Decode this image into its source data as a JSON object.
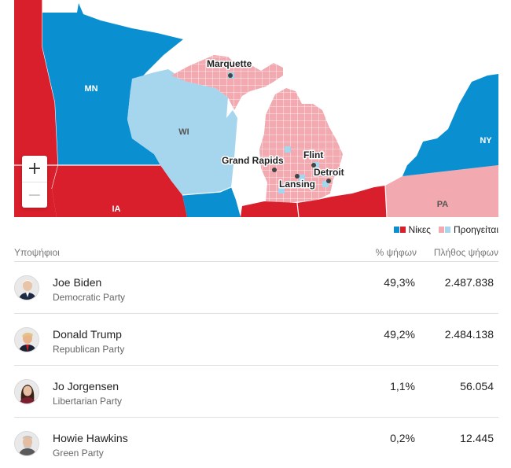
{
  "map": {
    "state_labels": {
      "mn": "MN",
      "wi": "WI",
      "ia": "IA",
      "ny": "NY",
      "pa": "PA"
    },
    "cities": {
      "marquette": "Marquette",
      "grand_rapids": "Grand Rapids",
      "flint": "Flint",
      "detroit": "Detroit",
      "lansing": "Lansing"
    },
    "zoom_in": "+",
    "zoom_out": "−"
  },
  "legend": {
    "wins": "Νίκες",
    "leading": "Προηγείται"
  },
  "colors": {
    "dem_win": "#0a8fd1",
    "dem_lead": "#a6d6ee",
    "rep_win": "#d91f2b",
    "rep_lead": "#f2a9b0",
    "water": "#ffffff"
  },
  "table": {
    "headers": {
      "candidates": "Υποψήφιοι",
      "percent": "% ψήφων",
      "votes": "Πλήθος ψήφων"
    },
    "rows": [
      {
        "name": "Joe Biden",
        "party": "Democratic Party",
        "percent": "49,3%",
        "votes": "2.487.838",
        "avatar": "portrait-biden-icon"
      },
      {
        "name": "Donald Trump",
        "party": "Republican Party",
        "percent": "49,2%",
        "votes": "2.484.138",
        "avatar": "portrait-trump-icon"
      },
      {
        "name": "Jo Jorgensen",
        "party": "Libertarian Party",
        "percent": "1,1%",
        "votes": "56.054",
        "avatar": "portrait-jorgensen-icon"
      },
      {
        "name": "Howie Hawkins",
        "party": "Green Party",
        "percent": "0,2%",
        "votes": "12.445",
        "avatar": "portrait-hawkins-icon"
      }
    ]
  }
}
